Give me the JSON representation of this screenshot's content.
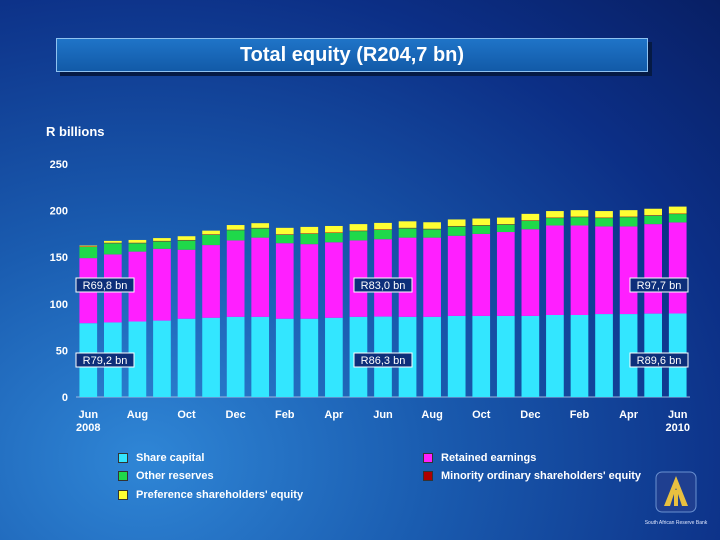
{
  "chart_data": {
    "type": "bar",
    "title": "Total equity (R204,7 bn)",
    "ylabel": "R billions",
    "ylim": [
      0,
      250
    ],
    "yticks": [
      0,
      50,
      100,
      150,
      200,
      250
    ],
    "categories": [
      "Jun 2008",
      "Jul 2008",
      "Aug 2008",
      "Sep 2008",
      "Oct 2008",
      "Nov 2008",
      "Dec 2008",
      "Jan 2009",
      "Feb 2009",
      "Mar 2009",
      "Apr 2009",
      "May 2009",
      "Jun 2009",
      "Jul 2009",
      "Aug 2009",
      "Sep 2009",
      "Oct 2009",
      "Nov 2009",
      "Dec 2009",
      "Jan 2010",
      "Feb 2010",
      "Mar 2010",
      "Apr 2010",
      "May 2010",
      "Jun 2010"
    ],
    "xtick_labels": [
      {
        "line1": "Jun",
        "line2": "2008"
      },
      {
        "line1": "Aug",
        "line2": ""
      },
      {
        "line1": "Oct",
        "line2": ""
      },
      {
        "line1": "Dec",
        "line2": ""
      },
      {
        "line1": "Feb",
        "line2": ""
      },
      {
        "line1": "Apr",
        "line2": ""
      },
      {
        "line1": "Jun",
        "line2": ""
      },
      {
        "line1": "Aug",
        "line2": ""
      },
      {
        "line1": "Oct",
        "line2": ""
      },
      {
        "line1": "Dec",
        "line2": ""
      },
      {
        "line1": "Feb",
        "line2": ""
      },
      {
        "line1": "Apr",
        "line2": ""
      },
      {
        "line1": "Jun",
        "line2": "2010"
      }
    ],
    "series": [
      {
        "name": "Share capital",
        "color": "#33e6ff",
        "values": [
          79.2,
          80,
          81,
          82,
          84,
          85,
          86,
          86,
          84,
          84,
          85,
          86,
          86.3,
          86,
          86,
          87,
          87,
          87,
          87,
          88,
          88,
          89,
          89,
          89.5,
          89.6
        ]
      },
      {
        "name": "Retained earnings",
        "color": "#ff1fff",
        "values": [
          69.8,
          73,
          75,
          77,
          74,
          78,
          82,
          85,
          81,
          80,
          81,
          82,
          83.0,
          85,
          85,
          86,
          88,
          90,
          93,
          96,
          96,
          94,
          94,
          96,
          97.7
        ]
      },
      {
        "name": "Other reserves",
        "color": "#1fd94a",
        "values": [
          12,
          12,
          9,
          8,
          10,
          11,
          11,
          10,
          9,
          11,
          10,
          10,
          10,
          10,
          9,
          10,
          9,
          8,
          9,
          8,
          9,
          9,
          10,
          9,
          9
        ]
      },
      {
        "name": "Minority ordinary shareholders' equity",
        "color": "#b00000",
        "values": [
          0.5,
          0.5,
          0.5,
          0.5,
          0.5,
          0.5,
          0.5,
          0.5,
          0.5,
          0.5,
          0.5,
          0.5,
          0.5,
          0.5,
          0.5,
          0.5,
          0.5,
          0.5,
          0.5,
          0.5,
          0.5,
          0.5,
          0.5,
          0.5,
          0.5
        ]
      },
      {
        "name": "Preference shareholders' equity",
        "color": "#ffff33",
        "values": [
          1,
          2,
          3,
          3,
          4,
          4,
          5,
          5,
          7,
          7,
          7,
          7,
          7,
          7,
          7,
          7,
          7,
          7,
          7,
          7,
          7,
          7,
          7,
          7,
          7.5
        ]
      }
    ],
    "annotations": [
      {
        "text": "R69,8 bn",
        "bar_index": 0,
        "level": "upper"
      },
      {
        "text": "R79,2 bn",
        "bar_index": 0,
        "level": "lower"
      },
      {
        "text": "R83,0 bn",
        "bar_index": 12,
        "level": "upper"
      },
      {
        "text": "R86,3 bn",
        "bar_index": 12,
        "level": "lower"
      },
      {
        "text": "R97,7 bn",
        "bar_index": 24,
        "level": "upper"
      },
      {
        "text": "R89,6 bn",
        "bar_index": 24,
        "level": "lower"
      }
    ]
  },
  "legend": {
    "share_capital": "Share capital",
    "retained_earnings": "Retained earnings",
    "other_reserves": "Other reserves",
    "minority": "Minority ordinary shareholders' equity",
    "preference": "Preference shareholders' equity"
  },
  "colors": {
    "share_capital": "#33e6ff",
    "retained_earnings": "#ff1fff",
    "other_reserves": "#1fd94a",
    "minority": "#b00000",
    "preference": "#ffff33"
  },
  "logo_text": "South African Reserve Bank"
}
